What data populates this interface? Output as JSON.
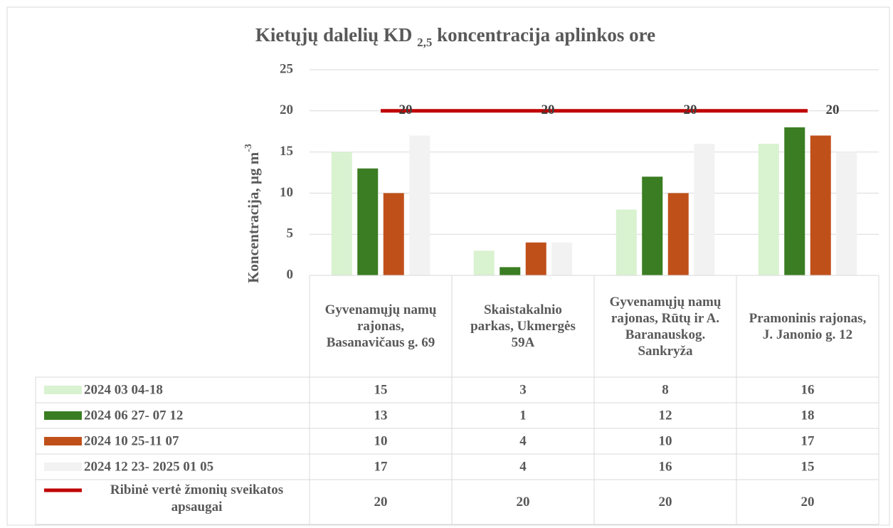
{
  "chart_data": {
    "type": "bar",
    "title": {
      "text": "Kietųjų dalelių KD",
      "subscript": "2,5",
      "text_after": "koncentracija aplinkos ore"
    },
    "y_label": {
      "text": "Koncentracija, µg m",
      "superscript": "-3"
    },
    "categories": [
      "Gyvenamųjų namų rajonas, Basanavičaus g. 69",
      "Skaistakalnio parkas, Ukmergės 59A",
      "Gyvenamųjų namų rajonas, Rūtų ir A. Baranauskog. Sankryža",
      "Pramoninis rajonas, J. Janonio g. 12"
    ],
    "series": [
      {
        "name": "2024 03 04-18",
        "type": "bar",
        "color": "#d9f2d0",
        "values": [
          15,
          3,
          8,
          16
        ]
      },
      {
        "name": "2024 06 27- 07 12",
        "type": "bar",
        "color": "#3a7d22",
        "values": [
          13,
          1,
          12,
          18
        ]
      },
      {
        "name": "2024 10 25-11 07",
        "type": "bar",
        "color": "#c0501a",
        "values": [
          10,
          4,
          10,
          17
        ]
      },
      {
        "name": "2024 12 23- 2025 01 05",
        "type": "bar",
        "color": "#f2f2f2",
        "values": [
          17,
          4,
          16,
          15
        ]
      },
      {
        "name": "Ribinė vertė žmonių sveikatos apsaugai",
        "type": "line",
        "color": "#c00000",
        "values": [
          20,
          20,
          20,
          20
        ]
      }
    ],
    "ylim": [
      0,
      25
    ],
    "yticks": [
      0,
      5,
      10,
      15,
      20,
      25
    ],
    "grid": true,
    "data_table": true
  }
}
